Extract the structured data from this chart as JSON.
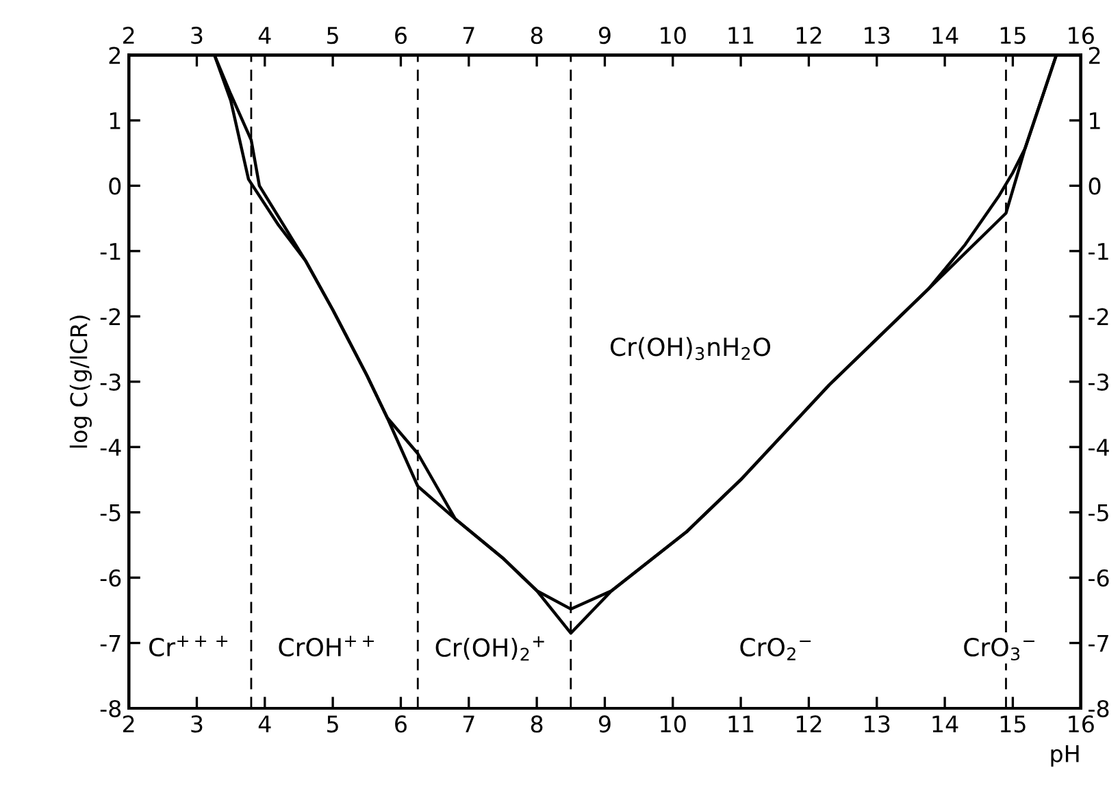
{
  "chart_data": {
    "type": "line",
    "xlabel": "pH",
    "ylabel": "log C(g/lCR)",
    "xlim": [
      2,
      16
    ],
    "xticks": [
      2,
      3,
      4,
      5,
      6,
      7,
      8,
      9,
      10,
      11,
      12,
      13,
      14,
      15,
      16
    ],
    "x2lim": [
      2,
      16
    ],
    "x2ticks": [
      2,
      3,
      4,
      5,
      6,
      7,
      8,
      9,
      10,
      11,
      12,
      13,
      14,
      15,
      16
    ],
    "ylim": [
      -8,
      2
    ],
    "yticks": [
      -8,
      -7,
      -6,
      -5,
      -4,
      -3,
      -2,
      -1,
      0,
      1,
      2
    ],
    "y2lim": [
      -8,
      2
    ],
    "y2ticks": [
      -8,
      -7,
      -6,
      -5,
      -4,
      -3,
      -2,
      -1,
      0,
      1,
      2
    ],
    "grid": false,
    "legend": false,
    "marker": "none",
    "line_style": "solid",
    "series": [
      {
        "color": "#000000",
        "x": [
          3.26,
          3.5,
          3.76,
          4.2,
          4.6,
          5.0,
          5.5,
          5.8,
          6.25,
          6.8,
          7.5,
          8.0,
          8.5,
          9.1,
          10.2,
          11.0,
          12.3,
          13.76,
          14.9,
          15.18,
          15.64
        ],
        "values": [
          2,
          1.3,
          0.1,
          -0.6,
          -1.15,
          -1.9,
          -2.9,
          -3.55,
          -4.6,
          -5.1,
          -5.7,
          -6.2,
          -6.85,
          -6.2,
          -5.3,
          -4.5,
          -3.05,
          -1.58,
          -0.42,
          0.57,
          2
        ]
      },
      {
        "color": "#000000",
        "x": [
          3.26,
          3.5,
          3.8,
          3.92,
          4.6,
          5.0,
          5.5,
          5.8,
          6.25,
          6.8,
          7.5,
          8.0,
          8.5,
          9.1,
          10.2,
          11.0,
          12.3,
          13.76,
          14.3,
          14.8,
          15.0,
          15.18,
          15.64
        ],
        "values": [
          2,
          1.4,
          0.7,
          0.0,
          -1.15,
          -1.9,
          -2.9,
          -3.55,
          -4.1,
          -5.1,
          -5.7,
          -6.2,
          -6.48,
          -6.2,
          -5.3,
          -4.5,
          -3.05,
          -1.58,
          -0.9,
          -0.15,
          0.2,
          0.57,
          2
        ]
      }
    ],
    "ref_lines": [
      {
        "axis": "x",
        "value": 3.8,
        "line_style": "dashed",
        "color": "#000000"
      },
      {
        "axis": "x",
        "value": 6.25,
        "line_style": "dashed",
        "color": "#000000"
      },
      {
        "axis": "x",
        "value": 8.5,
        "line_style": "dashed",
        "color": "#000000"
      },
      {
        "axis": "x",
        "value": 14.9,
        "line_style": "dashed",
        "color": "#000000"
      }
    ],
    "annotations": [
      "Cr(OH)$_{3}$nH$_{2}$O",
      "Cr$^{+++}$",
      "CrOH$^{++}$",
      "Cr(OH)$_{2}$$^{+}$",
      "CrO$_{2}$$^{−}$",
      "CrO$_{3}$$^{−}$"
    ]
  }
}
